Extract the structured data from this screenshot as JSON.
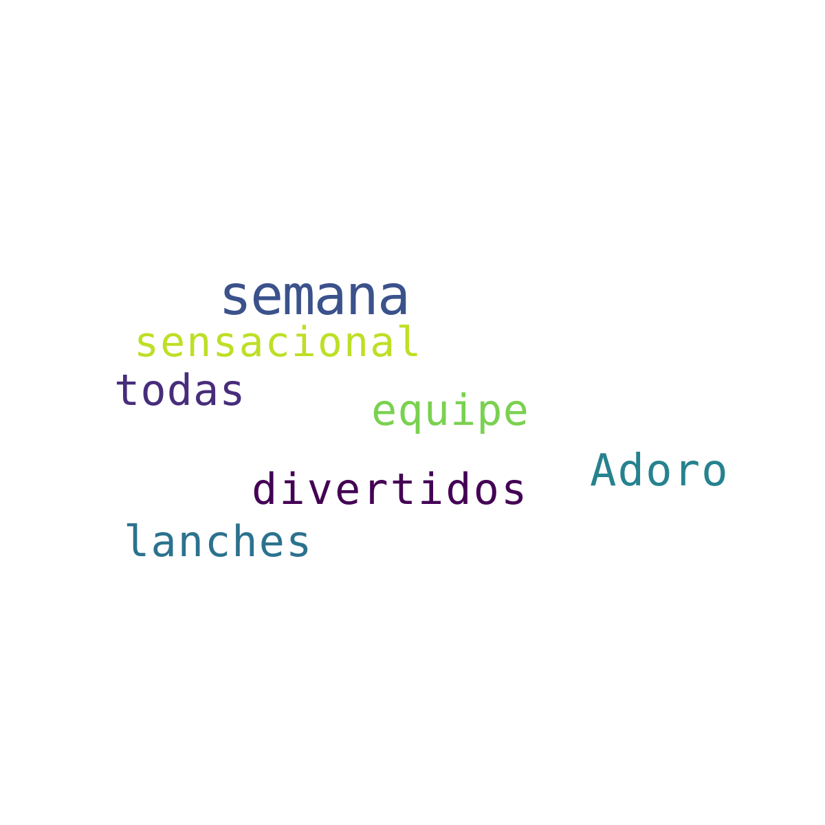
{
  "words": [
    {
      "text": "semana",
      "color": "#3b528b"
    },
    {
      "text": "sensacional",
      "color": "#bddf26"
    },
    {
      "text": "todas",
      "color": "#472d7b"
    },
    {
      "text": "equipe",
      "color": "#7ad151"
    },
    {
      "text": "Adoro",
      "color": "#26828e"
    },
    {
      "text": "divertidos",
      "color": "#440154"
    },
    {
      "text": "lanches",
      "color": "#2c728e"
    }
  ]
}
